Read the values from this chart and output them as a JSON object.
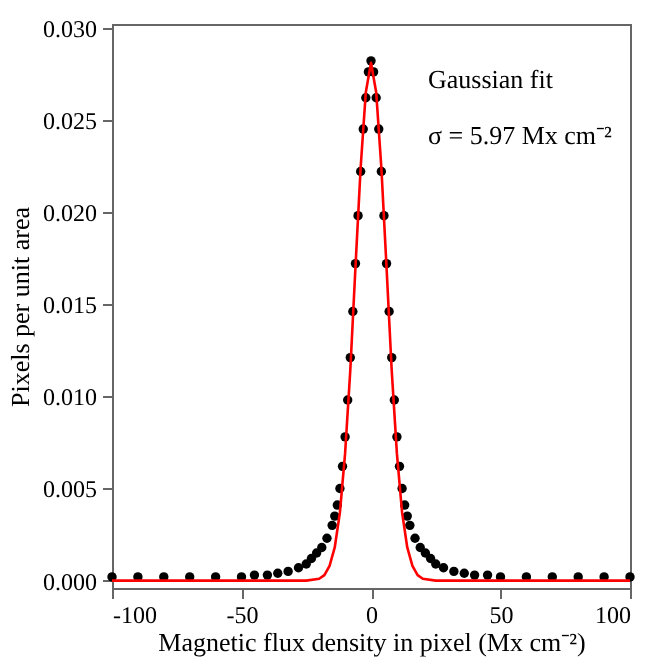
{
  "chart_data": {
    "type": "scatter",
    "xlabel": "Magnetic flux density in pixel (Mx cm⁻²)",
    "ylabel": "Pixels per unit area",
    "annotations": [
      "Gaussian fit",
      "σ = 5.97 Mx cm⁻²"
    ],
    "xlim": [
      -100,
      100
    ],
    "xticks": [
      -100,
      -50,
      0,
      50,
      100
    ],
    "ylim": [
      -0.0004,
      0.0302
    ],
    "yticks": [
      {
        "value": 0,
        "label": "0.000"
      },
      {
        "value": 0.005,
        "label": "0.005"
      },
      {
        "value": 0.01,
        "label": "0.010"
      },
      {
        "value": 0.015,
        "label": "0.015"
      },
      {
        "value": 0.02,
        "label": "0.020"
      },
      {
        "value": 0.025,
        "label": "0.025"
      },
      {
        "value": 0.03,
        "label": "0.030"
      }
    ],
    "grid": false,
    "series": [
      {
        "type": "scatter",
        "marker": "circle",
        "color": "#000000",
        "x": [
          -100,
          -90,
          -80,
          -70,
          -60,
          -50,
          -45,
          -40,
          -36,
          -32,
          -28,
          -25,
          -23,
          -21,
          -19,
          -17,
          -15,
          -14,
          -13,
          -12,
          -11,
          -10,
          -9,
          -8,
          -7,
          -6,
          -5,
          -4,
          -3,
          -2,
          -1,
          0,
          1,
          2,
          3,
          4,
          5,
          6,
          7,
          8,
          9,
          10,
          11,
          12,
          13,
          14,
          15,
          17,
          19,
          21,
          23,
          25,
          28,
          32,
          36,
          40,
          45,
          50,
          60,
          70,
          80,
          90,
          100
        ],
        "values": [
          0.0002,
          0.0002,
          0.0002,
          0.0002,
          0.0002,
          0.0002,
          0.0003,
          0.0003,
          0.0004,
          0.0005,
          0.0007,
          0.0009,
          0.0012,
          0.0015,
          0.0018,
          0.0023,
          0.003,
          0.0035,
          0.0041,
          0.005,
          0.0062,
          0.0078,
          0.0098,
          0.0121,
          0.0146,
          0.0172,
          0.0198,
          0.0222,
          0.0245,
          0.0262,
          0.0276,
          0.0282,
          0.0276,
          0.0262,
          0.0245,
          0.0222,
          0.0198,
          0.0172,
          0.0146,
          0.0121,
          0.0098,
          0.0078,
          0.0062,
          0.005,
          0.0041,
          0.0035,
          0.003,
          0.0023,
          0.0018,
          0.0015,
          0.0012,
          0.0009,
          0.0007,
          0.0005,
          0.0004,
          0.0003,
          0.0003,
          0.0002,
          0.0002,
          0.0002,
          0.0002,
          0.0002,
          0.0002
        ]
      },
      {
        "type": "line",
        "color": "#ff0000",
        "marker": "none",
        "line_style": "solid",
        "x": [
          -100,
          -30,
          -25,
          -20,
          -18,
          -16,
          -14,
          -12,
          -10,
          -8,
          -6,
          -4,
          -2,
          0,
          2,
          4,
          6,
          8,
          10,
          12,
          14,
          16,
          18,
          20,
          25,
          30,
          100
        ],
        "values": [
          0,
          0,
          0,
          0.0001,
          0.0003,
          0.0008,
          0.0018,
          0.0037,
          0.0069,
          0.0114,
          0.017,
          0.0224,
          0.0265,
          0.0281,
          0.0265,
          0.0224,
          0.017,
          0.0114,
          0.0069,
          0.0037,
          0.0018,
          0.0008,
          0.0003,
          0.0001,
          0,
          0,
          0
        ]
      }
    ]
  }
}
